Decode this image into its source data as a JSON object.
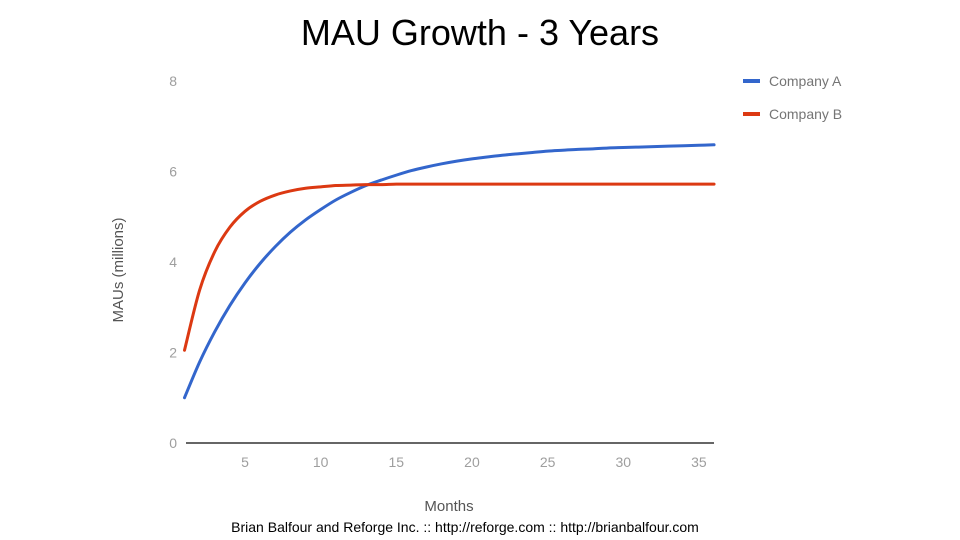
{
  "slide": {
    "title": "MAU Growth - 3 Years",
    "footer": "Brian Balfour and Reforge Inc. :: http://reforge.com ::  http://brianbalfour.com"
  },
  "chart_data": {
    "type": "line",
    "title": "MAU Growth - 3 Years",
    "xlabel": "Months",
    "ylabel": "MAUs (millions)",
    "xlim": [
      1,
      36
    ],
    "ylim": [
      0,
      8
    ],
    "x_ticks": [
      5,
      10,
      15,
      20,
      25,
      30,
      35
    ],
    "y_ticks": [
      0,
      2,
      4,
      6,
      8
    ],
    "grid": false,
    "legend_position": "right",
    "x": [
      1,
      2,
      3,
      4,
      5,
      6,
      7,
      8,
      9,
      10,
      11,
      12,
      13,
      14,
      15,
      16,
      17,
      18,
      19,
      20,
      21,
      22,
      23,
      24,
      25,
      26,
      27,
      28,
      29,
      30,
      31,
      32,
      33,
      34,
      35,
      36
    ],
    "series": [
      {
        "name": "Company A",
        "color": "#3366cc",
        "values": [
          1.0,
          1.79,
          2.46,
          3.04,
          3.54,
          3.97,
          4.34,
          4.66,
          4.93,
          5.16,
          5.37,
          5.54,
          5.69,
          5.81,
          5.92,
          6.02,
          6.1,
          6.17,
          6.23,
          6.28,
          6.32,
          6.36,
          6.39,
          6.42,
          6.45,
          6.47,
          6.49,
          6.5,
          6.52,
          6.53,
          6.54,
          6.55,
          6.56,
          6.57,
          6.58,
          6.59
        ]
      },
      {
        "name": "Company B",
        "color": "#dc3912",
        "values": [
          2.05,
          3.38,
          4.23,
          4.77,
          5.12,
          5.34,
          5.48,
          5.57,
          5.63,
          5.66,
          5.69,
          5.7,
          5.71,
          5.71,
          5.72,
          5.72,
          5.72,
          5.72,
          5.72,
          5.72,
          5.72,
          5.72,
          5.72,
          5.72,
          5.72,
          5.72,
          5.72,
          5.72,
          5.72,
          5.72,
          5.72,
          5.72,
          5.72,
          5.72,
          5.72,
          5.72
        ]
      }
    ]
  }
}
